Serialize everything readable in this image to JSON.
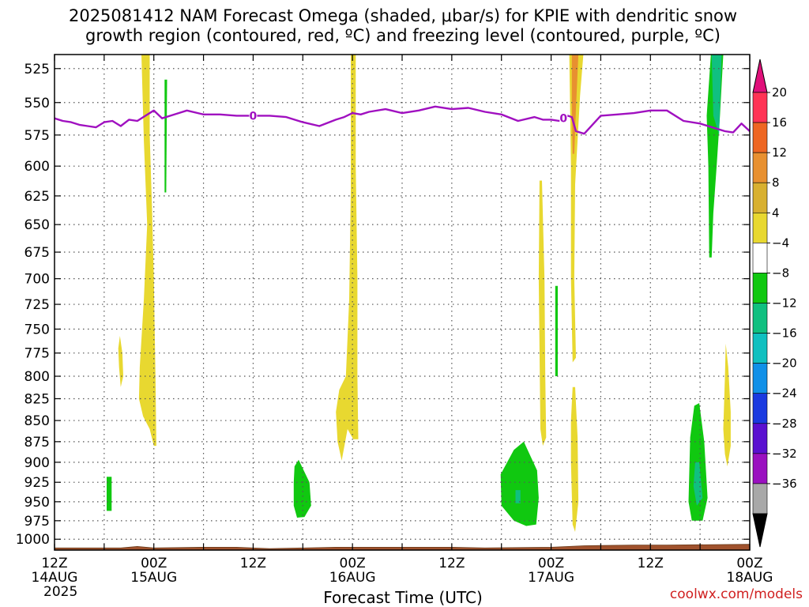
{
  "chart_data": {
    "type": "heatmap",
    "title_lines": [
      "2025081412 NAM Forecast Omega (shaded, μbar/s) for KPIE with dendritic snow",
      "growth region (contoured, red, ºC) and freezing level (contoured, purple, ºC)"
    ],
    "xlabel": "Forecast Time (UTC)",
    "ylabel": "",
    "credit": "coolwx.com/models",
    "x_ticks": [
      {
        "h": 0,
        "lines": [
          "12Z",
          "14AUG",
          "2025"
        ]
      },
      {
        "h": 6,
        "lines": []
      },
      {
        "h": 12,
        "lines": [
          "00Z",
          "15AUG"
        ]
      },
      {
        "h": 18,
        "lines": []
      },
      {
        "h": 24,
        "lines": [
          "12Z"
        ]
      },
      {
        "h": 30,
        "lines": []
      },
      {
        "h": 36,
        "lines": [
          "00Z",
          "16AUG"
        ]
      },
      {
        "h": 42,
        "lines": []
      },
      {
        "h": 48,
        "lines": [
          "12Z"
        ]
      },
      {
        "h": 54,
        "lines": []
      },
      {
        "h": 60,
        "lines": [
          "00Z",
          "17AUG"
        ]
      },
      {
        "h": 66,
        "lines": []
      },
      {
        "h": 72,
        "lines": [
          "12Z"
        ]
      },
      {
        "h": 78,
        "lines": []
      },
      {
        "h": 84,
        "lines": [
          "00Z",
          "18AUG"
        ]
      }
    ],
    "x_range": [
      0,
      84
    ],
    "y_ticks": [
      525,
      550,
      575,
      600,
      625,
      650,
      675,
      700,
      725,
      750,
      775,
      800,
      825,
      850,
      875,
      900,
      925,
      950,
      975,
      1000
    ],
    "y_range": [
      515,
      1015
    ],
    "y_scale": "log-pressure",
    "grid": true,
    "colorbar": {
      "labels": [
        "20",
        "16",
        "12",
        "8",
        "4",
        "−4",
        "−8",
        "−12",
        "−16",
        "−20",
        "−24",
        "−28",
        "−32",
        "−36"
      ],
      "colors": [
        "#ff3355",
        "#ee6622",
        "#e89030",
        "#d8b030",
        "#e8d830",
        "#ffffff",
        "#10c810",
        "#10c080",
        "#10c0c0",
        "#1090e8",
        "#1a3ae0",
        "#5a10d0",
        "#9a10c0",
        "#a8a8a8"
      ],
      "top_color": "#e0107a",
      "bottom_color": "#000000"
    },
    "freezing_level": {
      "label": "0",
      "color": "#a010c0",
      "x": [
        0,
        1,
        2,
        3,
        4,
        5,
        6,
        7,
        8,
        9,
        10,
        11,
        12,
        13,
        14,
        15,
        16,
        18,
        20,
        22,
        24,
        26,
        28,
        30,
        32,
        34,
        35,
        36,
        37,
        38,
        40,
        42,
        44,
        46,
        48,
        50,
        52,
        54,
        56,
        58,
        59,
        60,
        61,
        61.5,
        62,
        62.5,
        63,
        64,
        66,
        68,
        70,
        72,
        74,
        76,
        78,
        80,
        81,
        82,
        83,
        84
      ],
      "y": [
        562,
        564,
        565,
        567,
        568,
        569,
        565,
        564,
        568,
        563,
        564,
        560,
        556,
        562,
        560,
        558,
        556,
        559,
        559,
        560,
        560,
        560,
        561,
        565,
        568,
        563,
        561,
        558,
        559,
        557,
        555,
        558,
        556,
        553,
        555,
        554,
        557,
        559,
        564,
        561,
        563,
        563,
        564,
        562,
        560,
        561,
        572,
        574,
        560,
        559,
        558,
        556,
        556,
        564,
        566,
        570,
        572,
        573,
        566,
        572
      ]
    },
    "terrain": {
      "color": "#a0522d",
      "x": [
        0,
        8,
        10,
        12,
        18,
        22,
        26,
        34,
        40,
        48,
        52,
        60,
        64,
        70,
        74,
        84
      ],
      "top": [
        1012,
        1012,
        1010,
        1012,
        1011,
        1011,
        1013,
        1011,
        1011,
        1011,
        1012,
        1011,
        1009,
        1008,
        1008,
        1007
      ]
    },
    "regions": [
      {
        "value": 6,
        "color": "#e8d830",
        "pts": [
          [
            10.5,
            515
          ],
          [
            11.5,
            515
          ],
          [
            11.5,
            575
          ],
          [
            11.8,
            640
          ],
          [
            12,
            700
          ],
          [
            12.2,
            800
          ],
          [
            12.3,
            880
          ],
          [
            12,
            880
          ],
          [
            11.5,
            860
          ],
          [
            10.7,
            845
          ],
          [
            10.2,
            825
          ],
          [
            10.3,
            790
          ],
          [
            10.8,
            720
          ],
          [
            11.2,
            650
          ],
          [
            10.8,
            580
          ]
        ]
      },
      {
        "value": 6,
        "color": "#e8d830",
        "pts": [
          [
            7.9,
            757
          ],
          [
            8.2,
            775
          ],
          [
            8.3,
            800
          ],
          [
            8.0,
            812
          ],
          [
            7.8,
            790
          ],
          [
            7.7,
            770
          ]
        ]
      },
      {
        "value": -6,
        "color": "#10c810",
        "pts": [
          [
            13.3,
            533
          ],
          [
            13.6,
            533
          ],
          [
            13.5,
            622
          ],
          [
            13.3,
            622
          ]
        ]
      },
      {
        "value": -6,
        "color": "#10c810",
        "pts": [
          [
            6.3,
            918
          ],
          [
            6.9,
            918
          ],
          [
            6.9,
            962
          ],
          [
            6.3,
            962
          ]
        ]
      },
      {
        "value": 6,
        "color": "#e8d830",
        "pts": [
          [
            35.8,
            515
          ],
          [
            36.4,
            515
          ],
          [
            36.4,
            600
          ],
          [
            36.6,
            700
          ],
          [
            36.6,
            800
          ],
          [
            36.7,
            872
          ],
          [
            36.1,
            872
          ],
          [
            35.4,
            860
          ],
          [
            34.7,
            898
          ],
          [
            34.2,
            875
          ],
          [
            34.0,
            840
          ],
          [
            34.4,
            815
          ],
          [
            35.2,
            800
          ],
          [
            35.6,
            720
          ],
          [
            35.8,
            620
          ]
        ]
      },
      {
        "value": -6,
        "color": "#10c810",
        "pts": [
          [
            29.0,
            905
          ],
          [
            29.5,
            897
          ],
          [
            30.8,
            925
          ],
          [
            31.0,
            955
          ],
          [
            30.2,
            970
          ],
          [
            29.3,
            971
          ],
          [
            28.9,
            955
          ],
          [
            28.9,
            925
          ]
        ]
      },
      {
        "value": 6,
        "color": "#e8d830",
        "pts": [
          [
            58.6,
            612
          ],
          [
            58.9,
            612
          ],
          [
            59.2,
            700
          ],
          [
            59.3,
            800
          ],
          [
            59.4,
            870
          ],
          [
            59.0,
            880
          ],
          [
            58.7,
            860
          ],
          [
            58.5,
            700
          ]
        ]
      },
      {
        "value": -6,
        "color": "#10c810",
        "pts": [
          [
            60.5,
            707
          ],
          [
            60.8,
            707
          ],
          [
            60.8,
            800
          ],
          [
            60.5,
            800
          ]
        ]
      },
      {
        "value": 6,
        "color": "#e8d830",
        "pts": [
          [
            62.2,
            515
          ],
          [
            63.9,
            515
          ],
          [
            63.5,
            545
          ],
          [
            62.9,
            615
          ],
          [
            62.8,
            700
          ],
          [
            63.0,
            780
          ],
          [
            62.6,
            785
          ],
          [
            62.4,
            700
          ],
          [
            62.4,
            600
          ]
        ]
      },
      {
        "value": 10,
        "color": "#e89030",
        "pts": [
          [
            62.5,
            515
          ],
          [
            63.3,
            515
          ],
          [
            63.0,
            555
          ],
          [
            62.8,
            590
          ],
          [
            62.6,
            590
          ],
          [
            62.5,
            550
          ]
        ]
      },
      {
        "value": 6,
        "color": "#e8d830",
        "pts": [
          [
            62.6,
            812
          ],
          [
            62.9,
            812
          ],
          [
            63.2,
            870
          ],
          [
            63.3,
            950
          ],
          [
            62.9,
            990
          ],
          [
            62.6,
            980
          ],
          [
            62.4,
            900
          ],
          [
            62.4,
            850
          ]
        ]
      },
      {
        "value": -6,
        "color": "#10c810",
        "pts": [
          [
            55.5,
            885
          ],
          [
            56.7,
            875
          ],
          [
            58.3,
            910
          ],
          [
            58.5,
            945
          ],
          [
            58.2,
            980
          ],
          [
            57.0,
            982
          ],
          [
            55.5,
            975
          ],
          [
            54.0,
            955
          ],
          [
            53.9,
            915
          ]
        ]
      },
      {
        "value": -10,
        "color": "#10c080",
        "pts": [
          [
            55.7,
            935
          ],
          [
            56.3,
            935
          ],
          [
            56.3,
            952
          ],
          [
            55.7,
            952
          ]
        ]
      },
      {
        "value": -6,
        "color": "#10c810",
        "pts": [
          [
            79.3,
            515
          ],
          [
            80.8,
            515
          ],
          [
            80.4,
            560
          ],
          [
            80.0,
            600
          ],
          [
            79.6,
            640
          ],
          [
            79.4,
            680
          ],
          [
            79.1,
            680
          ],
          [
            79.0,
            600
          ],
          [
            78.8,
            560
          ]
        ]
      },
      {
        "value": -10,
        "color": "#10c080",
        "pts": [
          [
            79.4,
            515
          ],
          [
            80.6,
            515
          ],
          [
            80.3,
            575
          ],
          [
            79.6,
            560
          ]
        ]
      },
      {
        "value": 6,
        "color": "#e8d830",
        "pts": [
          [
            81.1,
            765
          ],
          [
            81.4,
            790
          ],
          [
            81.7,
            840
          ],
          [
            81.7,
            880
          ],
          [
            81.3,
            905
          ],
          [
            81.0,
            890
          ],
          [
            80.8,
            860
          ],
          [
            81.0,
            800
          ]
        ]
      },
      {
        "value": -6,
        "color": "#10c810",
        "pts": [
          [
            77.3,
            833
          ],
          [
            77.9,
            830
          ],
          [
            78.5,
            875
          ],
          [
            78.9,
            945
          ],
          [
            78.3,
            975
          ],
          [
            77.0,
            975
          ],
          [
            76.6,
            950
          ],
          [
            76.8,
            870
          ]
        ]
      },
      {
        "value": -10,
        "color": "#10c080",
        "pts": [
          [
            77.4,
            900
          ],
          [
            77.9,
            900
          ],
          [
            78.3,
            945
          ],
          [
            77.6,
            955
          ],
          [
            77.2,
            930
          ]
        ]
      }
    ]
  }
}
